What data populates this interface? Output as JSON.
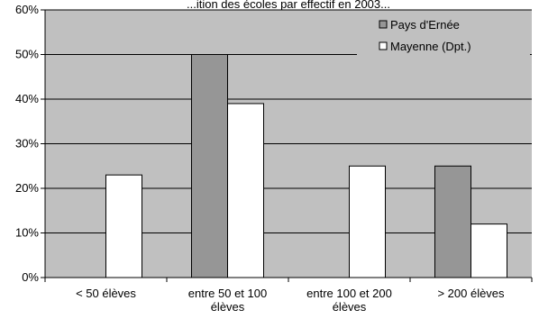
{
  "chart_data": {
    "type": "bar",
    "title": "...ition des écoles par effectif en 2003...",
    "categories": [
      [
        "< 50 élèves"
      ],
      [
        "entre 50 et 100",
        "élèves"
      ],
      [
        "entre 100 et 200",
        "élèves"
      ],
      [
        "> 200 élèves"
      ]
    ],
    "series": [
      {
        "name": "Pays d'Ernée",
        "values": [
          0,
          50,
          0,
          25
        ],
        "color": "#969696"
      },
      {
        "name": "Mayenne (Dpt.)",
        "values": [
          23,
          39,
          25,
          12
        ],
        "color": "#ffffff"
      }
    ],
    "ylim": [
      0,
      60
    ],
    "yticks": [
      0,
      10,
      20,
      30,
      40,
      50,
      60
    ],
    "ytick_format": "percent",
    "grid": true,
    "plot_background": "#c0c0c0",
    "legend_position": "top-right",
    "xlabel": "",
    "ylabel": ""
  }
}
